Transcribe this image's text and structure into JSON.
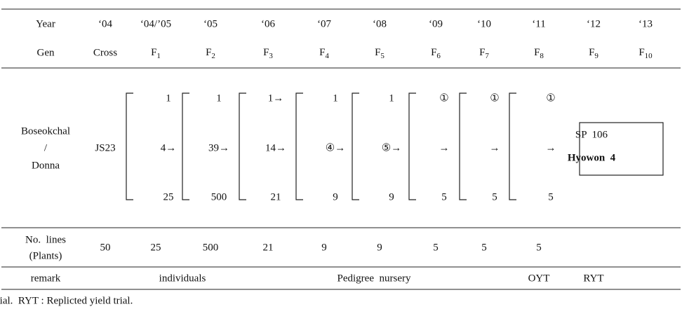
{
  "header": {
    "year_label": "Year",
    "years": [
      "‘04",
      "‘04/’05",
      "‘05",
      "‘06",
      "‘07",
      "‘08",
      "‘09",
      "‘10",
      "‘11",
      "‘12",
      "‘13"
    ],
    "gen_label": "Gen",
    "cross_label": "Cross",
    "gens": [
      {
        "base": "F",
        "sub": "1"
      },
      {
        "base": "F",
        "sub": "2"
      },
      {
        "base": "F",
        "sub": "3"
      },
      {
        "base": "F",
        "sub": "4"
      },
      {
        "base": "F",
        "sub": "5"
      },
      {
        "base": "F",
        "sub": "6"
      },
      {
        "base": "F",
        "sub": "7"
      },
      {
        "base": "F",
        "sub": "8"
      },
      {
        "base": "F",
        "sub": "9"
      },
      {
        "base": "F",
        "sub": "10"
      }
    ]
  },
  "pedigree": {
    "parents": [
      "Boseokchal",
      "/",
      "Donna"
    ],
    "cross": "JS23",
    "columns": [
      {
        "top": "1",
        "mid": "4→",
        "bottom": "25"
      },
      {
        "top": "1",
        "mid": "39→",
        "bottom": "500"
      },
      {
        "top": "1→",
        "mid": "14→",
        "bottom": "21"
      },
      {
        "top": "1",
        "mid": "④→",
        "bottom": "9"
      },
      {
        "top": "1",
        "mid": "⑤→",
        "bottom": "9"
      },
      {
        "top": "①",
        "mid": "→",
        "bottom": "5"
      },
      {
        "top": "①",
        "mid": "→",
        "bottom": "5"
      },
      {
        "top": "①",
        "mid": "→",
        "bottom": "5"
      }
    ],
    "result": {
      "line1": "SP  106",
      "line2": "Hyowon  4"
    }
  },
  "lines": {
    "label": [
      "No.  lines",
      "(Plants)"
    ],
    "values": [
      "50",
      "25",
      "500",
      "21",
      "9",
      "9",
      "5",
      "5",
      "5"
    ]
  },
  "remark": {
    "label": "remark",
    "individuals": "individuals",
    "pedigree": "Pedigree  nursery",
    "oyt": "OYT",
    "ryt": "RYT"
  },
  "footnote": "OYT : Observational yield trial.  RYT : Replicted yield trial."
}
